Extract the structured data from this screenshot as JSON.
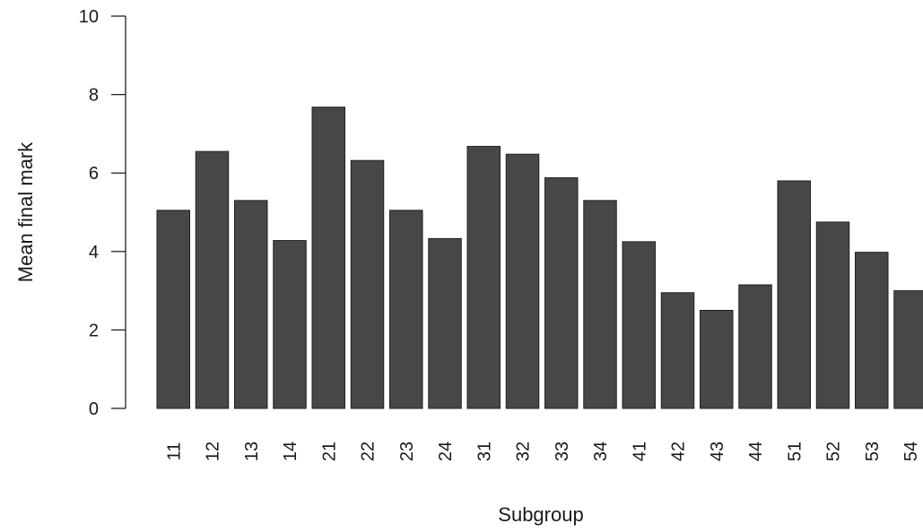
{
  "chart_data": {
    "type": "bar",
    "title": "",
    "xlabel": "Subgroup",
    "ylabel": "Mean final mark",
    "ylim": [
      0,
      10
    ],
    "yticks": [
      0,
      2,
      4,
      6,
      8,
      10
    ],
    "grid": false,
    "bar_color": "#474747",
    "categories": [
      "11",
      "12",
      "13",
      "14",
      "21",
      "22",
      "23",
      "24",
      "31",
      "32",
      "33",
      "34",
      "41",
      "42",
      "43",
      "44",
      "51",
      "52",
      "53",
      "54"
    ],
    "values": [
      5.05,
      6.55,
      5.3,
      4.28,
      7.68,
      6.32,
      5.05,
      4.33,
      6.68,
      6.48,
      5.88,
      5.3,
      4.25,
      2.95,
      2.5,
      3.15,
      5.8,
      4.75,
      3.98,
      3.0
    ]
  }
}
